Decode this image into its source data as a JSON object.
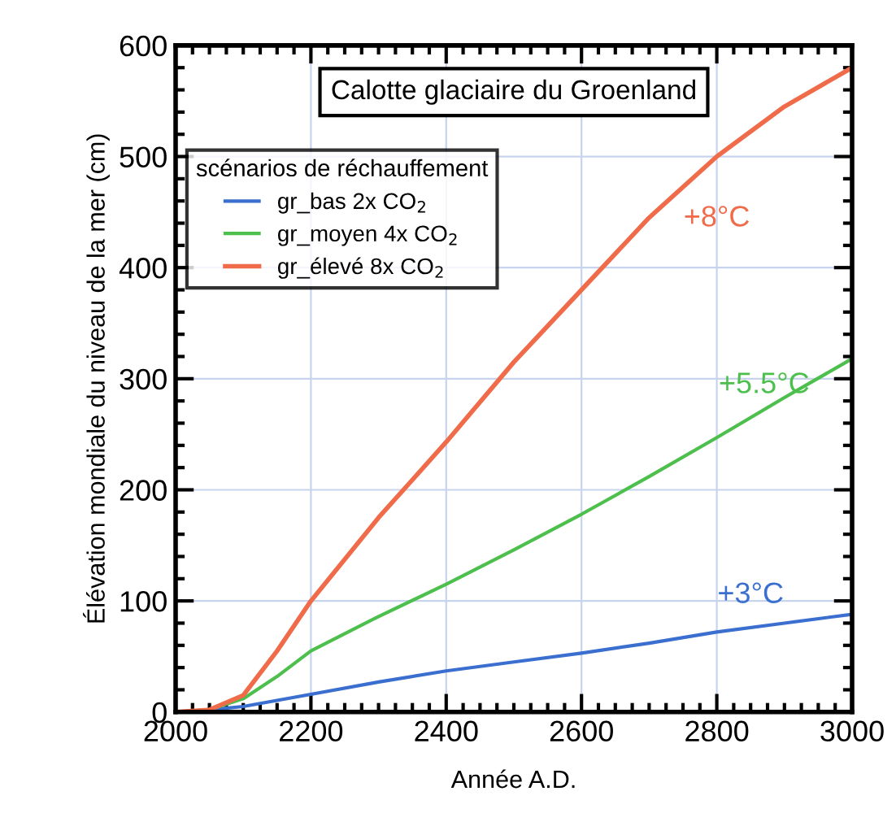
{
  "chart_data": {
    "type": "line",
    "title": "Calotte glaciaire du Groenland",
    "xlabel": "Année A.D.",
    "ylabel": "Élévation mondiale du niveau de la mer (cm)",
    "legend_title": "scénarios de réchauffement",
    "series": [
      {
        "name": "gr_bas 2x CO$_{2}$",
        "color": "#3a6fd0",
        "x": [
          2000,
          2050,
          2100,
          2200,
          2300,
          2400,
          2500,
          2600,
          2700,
          2800,
          2900,
          3000
        ],
        "values": [
          0,
          2,
          5,
          16,
          27,
          37,
          45,
          53,
          62,
          72,
          80,
          88
        ]
      },
      {
        "name": "gr_moyen 4x CO$_{2}$",
        "color": "#4cbf4c",
        "x": [
          2000,
          2050,
          2100,
          2150,
          2200,
          2300,
          2400,
          2500,
          2600,
          2700,
          2800,
          2900,
          3000
        ],
        "values": [
          0,
          2,
          12,
          32,
          55,
          86,
          115,
          146,
          178,
          212,
          247,
          283,
          318
        ]
      },
      {
        "name": "gr_élevé 8x CO$_{2}$",
        "color": "#ef6b4a",
        "x": [
          2000,
          2050,
          2100,
          2150,
          2200,
          2300,
          2400,
          2500,
          2600,
          2700,
          2800,
          2900,
          3000
        ],
        "values": [
          0,
          2,
          15,
          55,
          100,
          175,
          243,
          315,
          380,
          445,
          500,
          545,
          580
        ]
      }
    ],
    "annotations": [
      "+8°C",
      "+5.5°C",
      "+3°C"
    ],
    "xlim": [
      2000,
      3000
    ],
    "xticks": [
      2000,
      2200,
      2400,
      2600,
      2800,
      3000
    ],
    "ylim": [
      0,
      600
    ],
    "yticks": [
      0,
      100,
      200,
      300,
      400,
      500,
      600
    ],
    "grid": true,
    "legend": "top left",
    "marker": "none",
    "line_style": "solid"
  }
}
